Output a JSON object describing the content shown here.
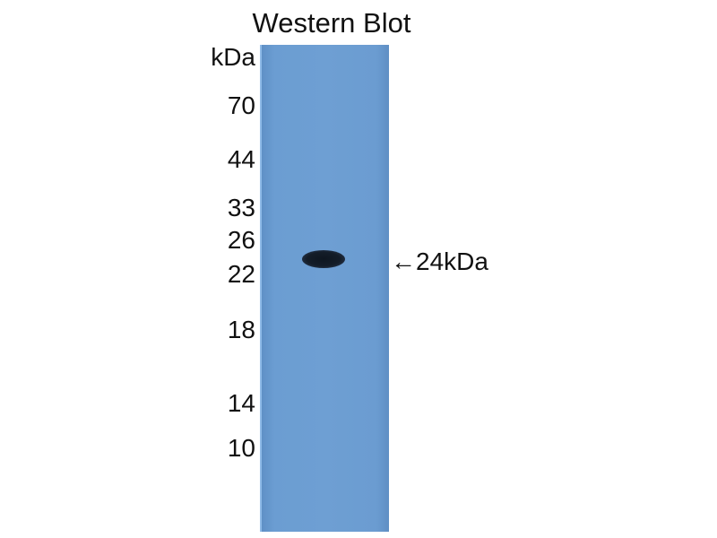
{
  "title": "Western Blot",
  "unit_label": "kDa",
  "markers": [
    "70",
    "44",
    "33",
    "26",
    "22",
    "18",
    "14",
    "10"
  ],
  "band_annotation": "←24kDa",
  "colors": {
    "membrane": "#6e9fd3",
    "band": "#141d29"
  }
}
